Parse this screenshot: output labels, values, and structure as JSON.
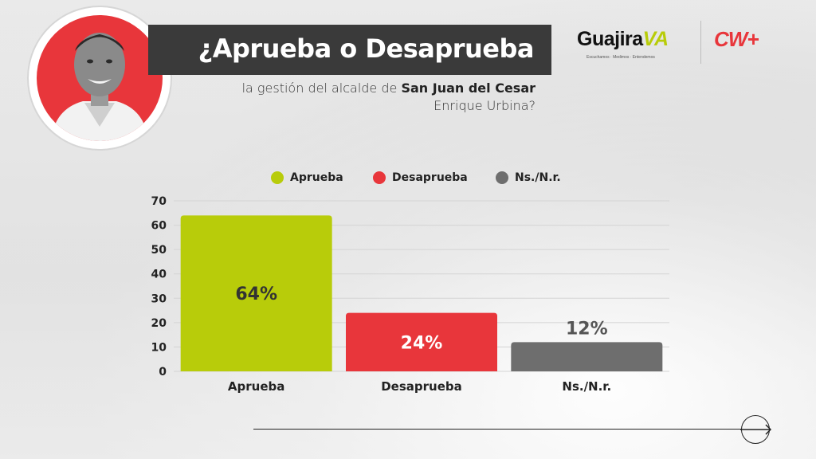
{
  "header": {
    "title": "¿Aprueba o Desaprueba",
    "subtitle_prefix": "la gestión del alcalde de ",
    "subtitle_bold": "San Juan del Cesar",
    "subtitle_line2": "Enrique Urbina?"
  },
  "logos": {
    "guajira_word": "Guajira",
    "guajira_mark": "VA",
    "guajira_tagline": "Escuchamos · Medimos · Entendemos",
    "cw": "CW+"
  },
  "colors": {
    "aprueba": "#b8cc0a",
    "desaprueba": "#e8363b",
    "nsnr": "#6e6e6e",
    "title_bar": "#3a3a3a"
  },
  "legend": [
    {
      "label": "Aprueba",
      "color": "#b8cc0a"
    },
    {
      "label": "Desaprueba",
      "color": "#e8363b"
    },
    {
      "label": "Ns./N.r.",
      "color": "#6e6e6e"
    }
  ],
  "chart_data": {
    "type": "bar",
    "categories": [
      "Aprueba",
      "Desaprueba",
      "Ns./N.r."
    ],
    "values": [
      64,
      24,
      12
    ],
    "data_labels": [
      "64%",
      "24%",
      "12%"
    ],
    "colors": [
      "#b8cc0a",
      "#e8363b",
      "#6e6e6e"
    ],
    "yticks": [
      0,
      10,
      20,
      30,
      40,
      50,
      60,
      70
    ],
    "ylim": [
      0,
      70
    ],
    "grid": true,
    "legend_position": "top"
  }
}
